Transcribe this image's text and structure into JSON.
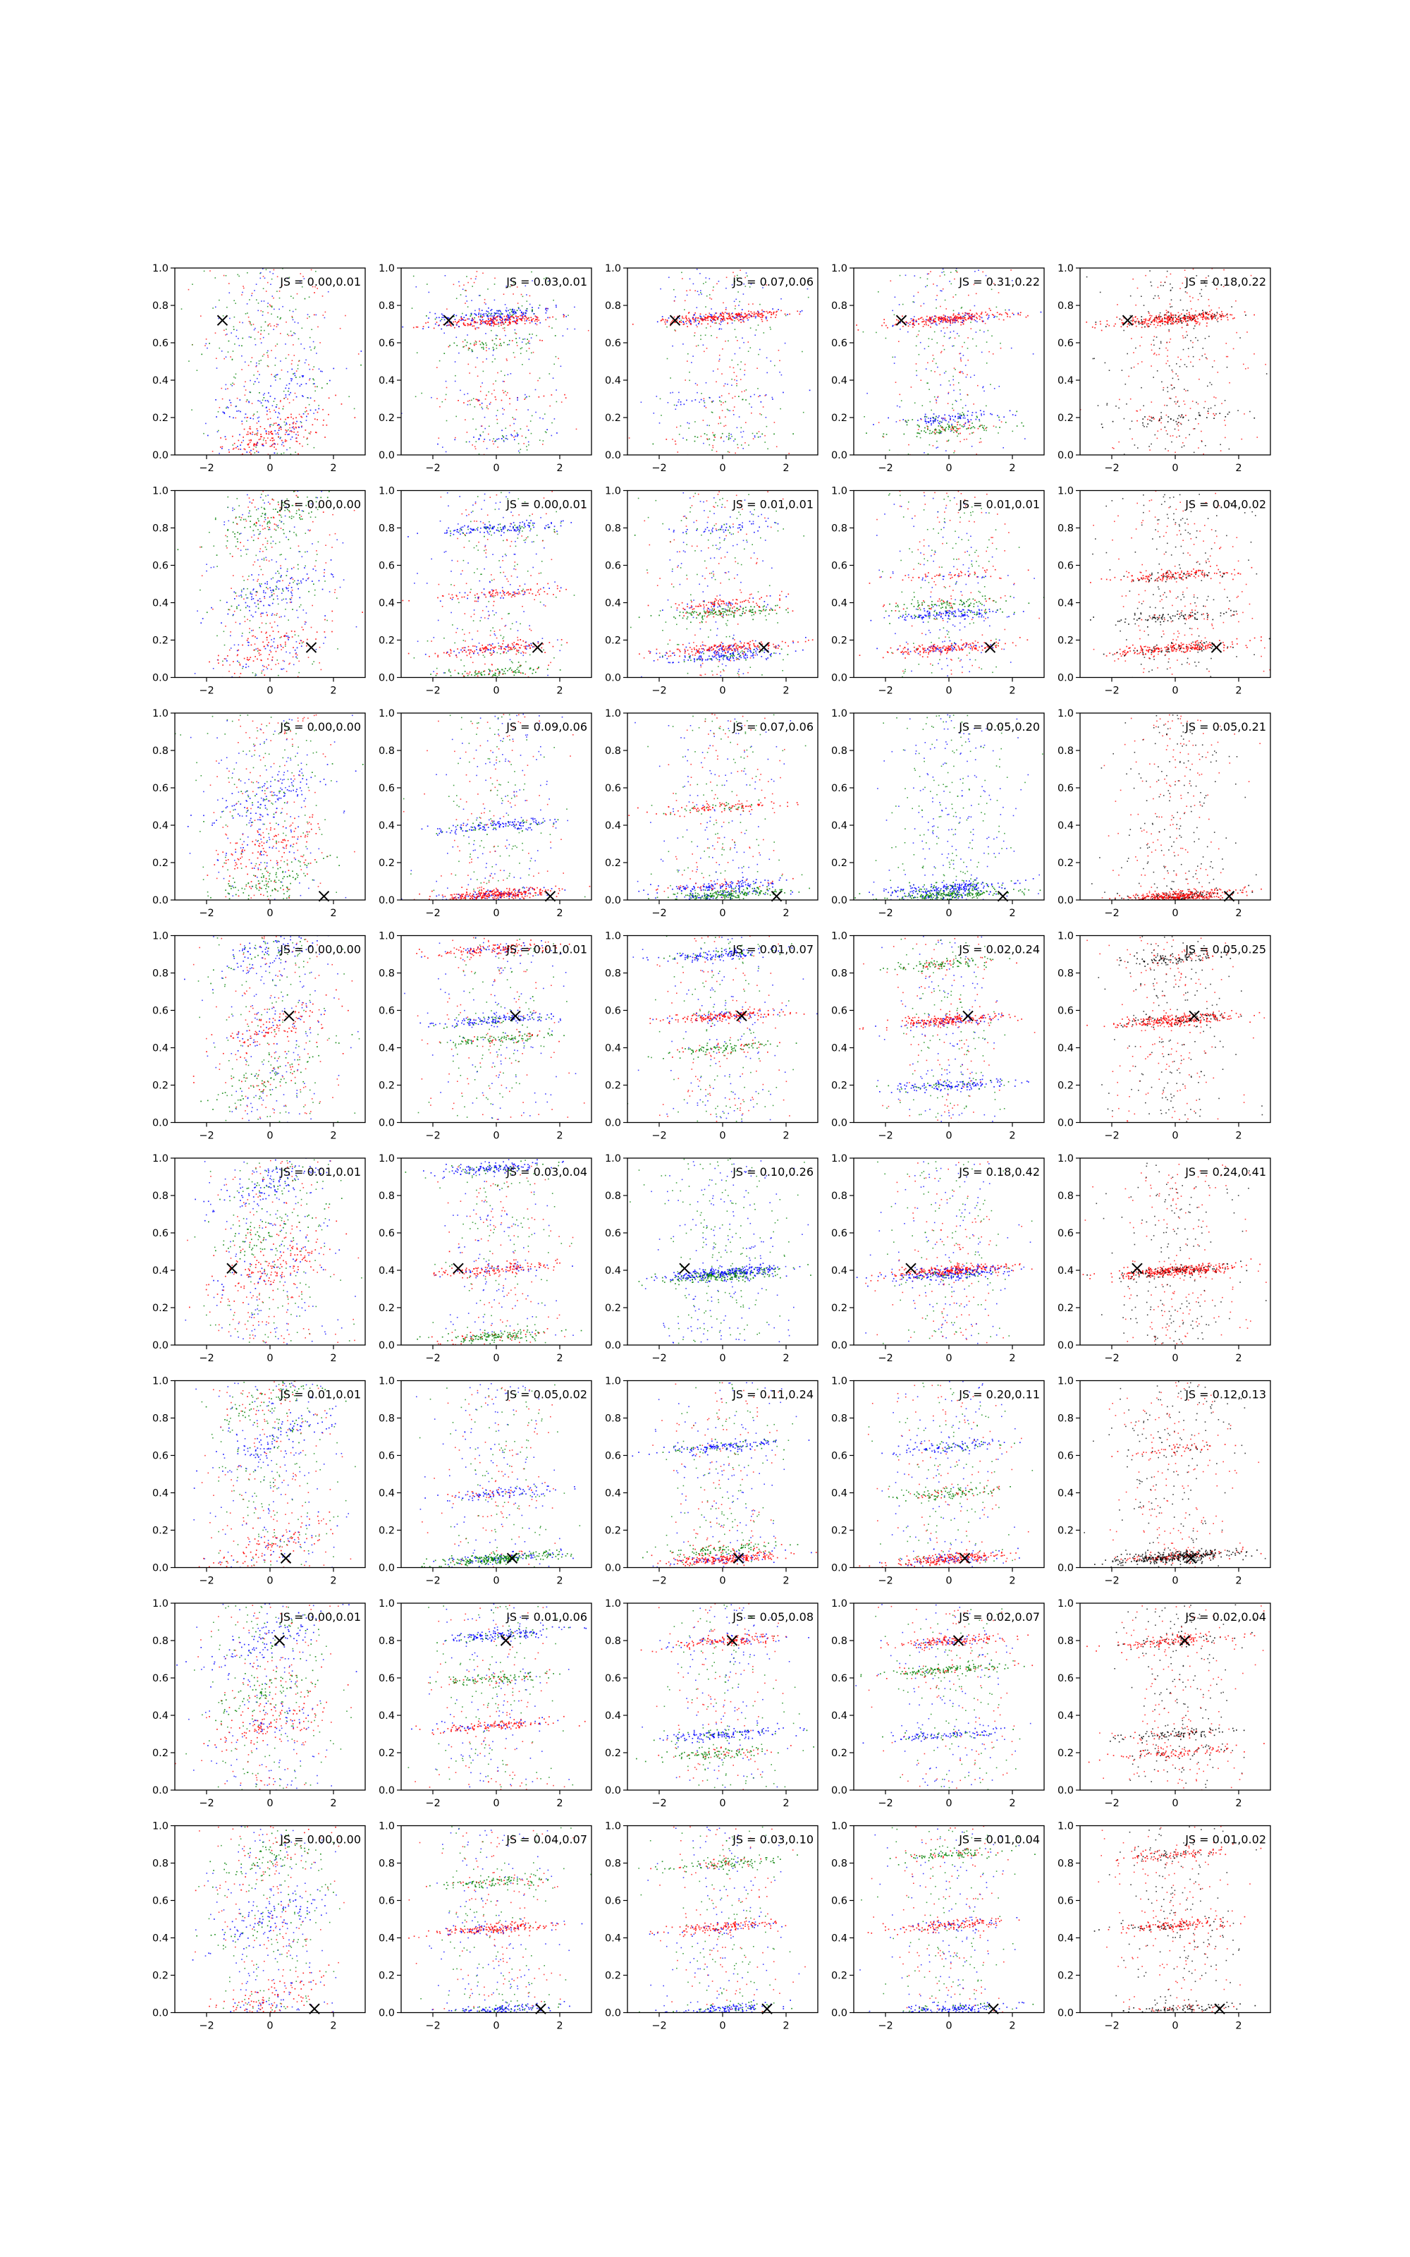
{
  "chart_data": {
    "type": "scatter",
    "layout": {
      "rows": 8,
      "cols": 5
    },
    "xlim": [
      -3,
      3
    ],
    "ylim": [
      0.0,
      1.0
    ],
    "xticks": [
      -2,
      0,
      2
    ],
    "xtick_labels": [
      "−2",
      "0",
      "2"
    ],
    "yticks": [
      0.0,
      0.2,
      0.4,
      0.6,
      0.8,
      1.0
    ],
    "ytick_labels": [
      "0.0",
      "0.2",
      "0.4",
      "0.6",
      "0.8",
      "1.0"
    ],
    "colors": {
      "red": "#ff0000",
      "blue": "#0000ff",
      "green": "#008000",
      "black": "#000000"
    },
    "panels": [
      {
        "row": 0,
        "col": 0,
        "label": "JS = 0.00,0.01",
        "marker": {
          "x": -1.5,
          "y": 0.72
        },
        "bands": [
          [
            0.1,
            0.55
          ],
          [
            0.32,
            0.2
          ],
          [
            0.72,
            0.05
          ]
        ],
        "style": "wide",
        "colors": [
          "red",
          "blue",
          "green"
        ]
      },
      {
        "row": 0,
        "col": 1,
        "label": "JS = 0.03,0.01",
        "marker": {
          "x": -1.5,
          "y": 0.72
        },
        "bands": [
          [
            0.72,
            0.5
          ],
          [
            0.76,
            0.3
          ],
          [
            0.6,
            0.1
          ],
          [
            0.3,
            0.05
          ],
          [
            0.1,
            0.05
          ]
        ],
        "style": "band",
        "colors": [
          "red",
          "blue",
          "green"
        ]
      },
      {
        "row": 0,
        "col": 2,
        "label": "JS = 0.07,0.06",
        "marker": {
          "x": -1.5,
          "y": 0.72
        },
        "bands": [
          [
            0.74,
            0.6
          ],
          [
            0.3,
            0.05
          ],
          [
            0.1,
            0.05
          ]
        ],
        "style": "band",
        "colors": [
          "red",
          "blue",
          "green"
        ]
      },
      {
        "row": 0,
        "col": 3,
        "label": "JS = 0.31,0.22",
        "marker": {
          "x": -1.5,
          "y": 0.72
        },
        "bands": [
          [
            0.73,
            0.55
          ],
          [
            0.2,
            0.2
          ],
          [
            0.14,
            0.2
          ]
        ],
        "style": "band",
        "colors": [
          "red",
          "blue",
          "green"
        ]
      },
      {
        "row": 0,
        "col": 4,
        "label": "JS = 0.18,0.22",
        "marker": {
          "x": -1.5,
          "y": 0.72
        },
        "bands": [
          [
            0.73,
            0.7
          ],
          [
            0.2,
            0.1
          ]
        ],
        "style": "band",
        "colors": [
          "red",
          "black"
        ]
      },
      {
        "row": 1,
        "col": 0,
        "label": "JS = 0.00,0.00",
        "marker": {
          "x": 1.3,
          "y": 0.16
        },
        "bands": [
          [
            0.16,
            0.3
          ],
          [
            0.45,
            0.3
          ],
          [
            0.85,
            0.3
          ]
        ],
        "style": "wide",
        "colors": [
          "red",
          "blue",
          "green"
        ]
      },
      {
        "row": 1,
        "col": 1,
        "label": "JS = 0.00,0.01",
        "marker": {
          "x": 1.3,
          "y": 0.16
        },
        "bands": [
          [
            0.16,
            0.3
          ],
          [
            0.8,
            0.3
          ],
          [
            0.03,
            0.2
          ],
          [
            0.45,
            0.2
          ]
        ],
        "style": "band",
        "colors": [
          "red",
          "blue",
          "green"
        ]
      },
      {
        "row": 1,
        "col": 2,
        "label": "JS = 0.01,0.01",
        "marker": {
          "x": 1.3,
          "y": 0.16
        },
        "bands": [
          [
            0.16,
            0.4
          ],
          [
            0.12,
            0.3
          ],
          [
            0.35,
            0.3
          ],
          [
            0.4,
            0.2
          ],
          [
            0.8,
            0.1
          ]
        ],
        "style": "band",
        "colors": [
          "red",
          "blue",
          "green"
        ]
      },
      {
        "row": 1,
        "col": 3,
        "label": "JS = 0.01,0.01",
        "marker": {
          "x": 1.3,
          "y": 0.16
        },
        "bands": [
          [
            0.16,
            0.4
          ],
          [
            0.34,
            0.3
          ],
          [
            0.4,
            0.2
          ],
          [
            0.55,
            0.1
          ]
        ],
        "style": "band",
        "colors": [
          "red",
          "blue",
          "green"
        ]
      },
      {
        "row": 1,
        "col": 4,
        "label": "JS = 0.04,0.02",
        "marker": {
          "x": 1.3,
          "y": 0.16
        },
        "bands": [
          [
            0.16,
            0.5
          ],
          [
            0.33,
            0.2
          ],
          [
            0.55,
            0.3
          ]
        ],
        "style": "band",
        "colors": [
          "red",
          "black"
        ]
      },
      {
        "row": 2,
        "col": 0,
        "label": "JS = 0.00,0.00",
        "marker": {
          "x": 1.7,
          "y": 0.02
        },
        "bands": [
          [
            0.3,
            0.3
          ],
          [
            0.55,
            0.3
          ],
          [
            0.1,
            0.3
          ]
        ],
        "style": "wide",
        "colors": [
          "red",
          "blue",
          "green"
        ]
      },
      {
        "row": 2,
        "col": 1,
        "label": "JS = 0.09,0.06",
        "marker": {
          "x": 1.7,
          "y": 0.02
        },
        "bands": [
          [
            0.03,
            0.7
          ],
          [
            0.4,
            0.3
          ]
        ],
        "style": "band",
        "colors": [
          "red",
          "blue",
          "green"
        ]
      },
      {
        "row": 2,
        "col": 2,
        "label": "JS = 0.07,0.06",
        "marker": {
          "x": 1.7,
          "y": 0.02
        },
        "bands": [
          [
            0.03,
            0.5
          ],
          [
            0.08,
            0.3
          ],
          [
            0.5,
            0.2
          ]
        ],
        "style": "band",
        "colors": [
          "green",
          "blue",
          "red"
        ]
      },
      {
        "row": 2,
        "col": 3,
        "label": "JS = 0.05,0.20",
        "marker": {
          "x": 1.7,
          "y": 0.02
        },
        "bands": [
          [
            0.03,
            0.5
          ],
          [
            0.07,
            0.4
          ]
        ],
        "style": "band",
        "colors": [
          "green",
          "blue"
        ]
      },
      {
        "row": 2,
        "col": 4,
        "label": "JS = 0.05,0.21",
        "marker": {
          "x": 1.7,
          "y": 0.02
        },
        "bands": [
          [
            0.02,
            0.9
          ]
        ],
        "style": "band",
        "colors": [
          "red",
          "black"
        ]
      },
      {
        "row": 3,
        "col": 0,
        "label": "JS = 0.00,0.00",
        "marker": {
          "x": 0.6,
          "y": 0.57
        },
        "bands": [
          [
            0.5,
            0.3
          ],
          [
            0.93,
            0.3
          ],
          [
            0.25,
            0.2
          ]
        ],
        "style": "wide",
        "colors": [
          "red",
          "blue",
          "green"
        ]
      },
      {
        "row": 3,
        "col": 1,
        "label": "JS = 0.01,0.01",
        "marker": {
          "x": 0.6,
          "y": 0.57
        },
        "bands": [
          [
            0.93,
            0.3
          ],
          [
            0.55,
            0.3
          ],
          [
            0.45,
            0.2
          ]
        ],
        "style": "band",
        "colors": [
          "red",
          "blue",
          "green"
        ]
      },
      {
        "row": 3,
        "col": 2,
        "label": "JS = 0.01,0.07",
        "marker": {
          "x": 0.6,
          "y": 0.57
        },
        "bands": [
          [
            0.57,
            0.4
          ],
          [
            0.9,
            0.3
          ],
          [
            0.4,
            0.2
          ]
        ],
        "style": "band",
        "colors": [
          "red",
          "blue",
          "green"
        ]
      },
      {
        "row": 3,
        "col": 3,
        "label": "JS = 0.02,0.24",
        "marker": {
          "x": 0.6,
          "y": 0.57
        },
        "bands": [
          [
            0.55,
            0.5
          ],
          [
            0.2,
            0.3
          ],
          [
            0.85,
            0.2
          ]
        ],
        "style": "band",
        "colors": [
          "red",
          "blue",
          "green"
        ]
      },
      {
        "row": 3,
        "col": 4,
        "label": "JS = 0.05,0.25",
        "marker": {
          "x": 0.6,
          "y": 0.57
        },
        "bands": [
          [
            0.55,
            0.6
          ],
          [
            0.88,
            0.2
          ]
        ],
        "style": "band",
        "colors": [
          "red",
          "black"
        ]
      },
      {
        "row": 4,
        "col": 0,
        "label": "JS = 0.01,0.01",
        "marker": {
          "x": -1.2,
          "y": 0.41
        },
        "bands": [
          [
            0.41,
            0.4
          ],
          [
            0.87,
            0.3
          ],
          [
            0.6,
            0.2
          ]
        ],
        "style": "wide",
        "colors": [
          "red",
          "blue",
          "green"
        ]
      },
      {
        "row": 4,
        "col": 1,
        "label": "JS = 0.03,0.04",
        "marker": {
          "x": -1.2,
          "y": 0.41
        },
        "bands": [
          [
            0.41,
            0.3
          ],
          [
            0.95,
            0.3
          ],
          [
            0.05,
            0.3
          ]
        ],
        "style": "band",
        "colors": [
          "red",
          "blue",
          "green"
        ]
      },
      {
        "row": 4,
        "col": 2,
        "label": "JS = 0.10,0.26",
        "marker": {
          "x": -1.2,
          "y": 0.41
        },
        "bands": [
          [
            0.39,
            0.6
          ],
          [
            0.37,
            0.3
          ]
        ],
        "style": "band",
        "colors": [
          "blue",
          "green"
        ]
      },
      {
        "row": 4,
        "col": 3,
        "label": "JS = 0.18,0.42",
        "marker": {
          "x": -1.2,
          "y": 0.41
        },
        "bands": [
          [
            0.4,
            0.6
          ],
          [
            0.38,
            0.3
          ]
        ],
        "style": "band",
        "colors": [
          "red",
          "blue",
          "green"
        ]
      },
      {
        "row": 4,
        "col": 4,
        "label": "JS = 0.24,0.41",
        "marker": {
          "x": -1.2,
          "y": 0.41
        },
        "bands": [
          [
            0.4,
            0.8
          ]
        ],
        "style": "band",
        "colors": [
          "red",
          "black"
        ]
      },
      {
        "row": 5,
        "col": 0,
        "label": "JS = 0.01,0.01",
        "marker": {
          "x": 0.5,
          "y": 0.05
        },
        "bands": [
          [
            0.12,
            0.3
          ],
          [
            0.68,
            0.3
          ],
          [
            0.9,
            0.2
          ]
        ],
        "style": "wide",
        "colors": [
          "red",
          "blue",
          "green"
        ]
      },
      {
        "row": 5,
        "col": 1,
        "label": "JS = 0.05,0.02",
        "marker": {
          "x": 0.5,
          "y": 0.05
        },
        "bands": [
          [
            0.05,
            0.6
          ],
          [
            0.4,
            0.2
          ]
        ],
        "style": "band",
        "colors": [
          "green",
          "blue",
          "red"
        ]
      },
      {
        "row": 5,
        "col": 2,
        "label": "JS = 0.11,0.24",
        "marker": {
          "x": 0.5,
          "y": 0.05
        },
        "bands": [
          [
            0.05,
            0.5
          ],
          [
            0.65,
            0.3
          ],
          [
            0.1,
            0.2
          ]
        ],
        "style": "band",
        "colors": [
          "red",
          "blue",
          "green"
        ]
      },
      {
        "row": 5,
        "col": 3,
        "label": "JS = 0.20,0.11",
        "marker": {
          "x": 0.5,
          "y": 0.05
        },
        "bands": [
          [
            0.05,
            0.5
          ],
          [
            0.65,
            0.2
          ],
          [
            0.4,
            0.2
          ]
        ],
        "style": "band",
        "colors": [
          "red",
          "blue",
          "green"
        ]
      },
      {
        "row": 5,
        "col": 4,
        "label": "JS = 0.12,0.13",
        "marker": {
          "x": 0.5,
          "y": 0.05
        },
        "bands": [
          [
            0.06,
            0.8
          ],
          [
            0.64,
            0.1
          ]
        ],
        "style": "band",
        "colors": [
          "black",
          "red"
        ]
      },
      {
        "row": 6,
        "col": 0,
        "label": "JS = 0.00,0.01",
        "marker": {
          "x": 0.3,
          "y": 0.8
        },
        "bands": [
          [
            0.35,
            0.3
          ],
          [
            0.8,
            0.3
          ],
          [
            0.55,
            0.2
          ]
        ],
        "style": "wide",
        "colors": [
          "red",
          "blue",
          "green"
        ]
      },
      {
        "row": 6,
        "col": 1,
        "label": "JS = 0.01,0.06",
        "marker": {
          "x": 0.3,
          "y": 0.8
        },
        "bands": [
          [
            0.35,
            0.3
          ],
          [
            0.83,
            0.3
          ],
          [
            0.6,
            0.2
          ]
        ],
        "style": "band",
        "colors": [
          "red",
          "blue",
          "green"
        ]
      },
      {
        "row": 6,
        "col": 2,
        "label": "JS = 0.05,0.08",
        "marker": {
          "x": 0.3,
          "y": 0.8
        },
        "bands": [
          [
            0.8,
            0.3
          ],
          [
            0.3,
            0.3
          ],
          [
            0.2,
            0.2
          ]
        ],
        "style": "band",
        "colors": [
          "red",
          "blue",
          "green"
        ]
      },
      {
        "row": 6,
        "col": 3,
        "label": "JS = 0.02,0.07",
        "marker": {
          "x": 0.3,
          "y": 0.8
        },
        "bands": [
          [
            0.8,
            0.3
          ],
          [
            0.3,
            0.2
          ],
          [
            0.65,
            0.3
          ]
        ],
        "style": "band",
        "colors": [
          "red",
          "blue",
          "green"
        ]
      },
      {
        "row": 6,
        "col": 4,
        "label": "JS = 0.02,0.04",
        "marker": {
          "x": 0.3,
          "y": 0.8
        },
        "bands": [
          [
            0.8,
            0.3
          ],
          [
            0.3,
            0.2
          ],
          [
            0.2,
            0.2
          ]
        ],
        "style": "band",
        "colors": [
          "red",
          "black"
        ]
      },
      {
        "row": 7,
        "col": 0,
        "label": "JS = 0.00,0.00",
        "marker": {
          "x": 1.4,
          "y": 0.02
        },
        "bands": [
          [
            0.05,
            0.3
          ],
          [
            0.5,
            0.3
          ],
          [
            0.85,
            0.2
          ]
        ],
        "style": "wide",
        "colors": [
          "red",
          "blue",
          "green"
        ]
      },
      {
        "row": 7,
        "col": 1,
        "label": "JS = 0.04,0.07",
        "marker": {
          "x": 1.4,
          "y": 0.02
        },
        "bands": [
          [
            0.45,
            0.4
          ],
          [
            0.02,
            0.3
          ],
          [
            0.7,
            0.2
          ]
        ],
        "style": "band",
        "colors": [
          "red",
          "blue",
          "green"
        ]
      },
      {
        "row": 7,
        "col": 2,
        "label": "JS = 0.03,0.10",
        "marker": {
          "x": 1.4,
          "y": 0.02
        },
        "bands": [
          [
            0.46,
            0.3
          ],
          [
            0.02,
            0.3
          ],
          [
            0.8,
            0.2
          ]
        ],
        "style": "band",
        "colors": [
          "red",
          "blue",
          "green"
        ]
      },
      {
        "row": 7,
        "col": 3,
        "label": "JS = 0.01,0.04",
        "marker": {
          "x": 1.4,
          "y": 0.02
        },
        "bands": [
          [
            0.47,
            0.3
          ],
          [
            0.02,
            0.3
          ],
          [
            0.85,
            0.2
          ]
        ],
        "style": "band",
        "colors": [
          "red",
          "blue",
          "green"
        ]
      },
      {
        "row": 7,
        "col": 4,
        "label": "JS = 0.01,0.02",
        "marker": {
          "x": 1.4,
          "y": 0.02
        },
        "bands": [
          [
            0.47,
            0.3
          ],
          [
            0.02,
            0.2
          ],
          [
            0.85,
            0.2
          ]
        ],
        "style": "band",
        "colors": [
          "red",
          "black"
        ]
      }
    ]
  }
}
